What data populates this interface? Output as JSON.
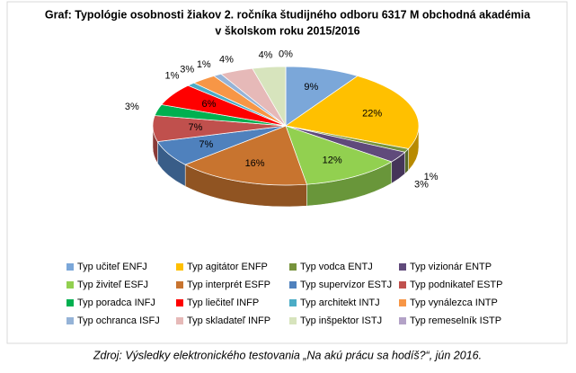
{
  "chart_data": {
    "type": "pie3d",
    "title": [
      "Graf: Typológie osobnosti žiakov 2. ročníka študijného odboru 6317 M obchodná akadémia",
      "v školskom roku 2015/2016"
    ],
    "categories": [
      "Typ učiteľ ENFJ",
      "Typ agitátor ENFP",
      "Typ vodca ENTJ",
      "Typ vizionár ENTP",
      "Typ živiteľ ESFJ",
      "Typ interprét ESFP",
      "Typ supervízor ESTJ",
      "Typ podnikateľ ESTP",
      "Typ poradca INFJ",
      "Typ liečiteľ INFP",
      "Typ architekt INTJ",
      "Typ vynálezca INTP",
      "Typ ochranca ISFJ",
      "Typ skladateľ INFP",
      "Typ inšpektor ISTJ",
      "Typ remeselník ISTP"
    ],
    "values": [
      9,
      22,
      1,
      3,
      12,
      16,
      7,
      7,
      3,
      6,
      1,
      3,
      1,
      4,
      4,
      0
    ],
    "value_labels": [
      "9%",
      "22%",
      "1%",
      "3%",
      "12%",
      "16%",
      "7%",
      "7%",
      "3%",
      "6%",
      "1%",
      "3%",
      "1%",
      "4%",
      "4%",
      "0%"
    ],
    "colors": [
      "#7ba7d9",
      "#ffc000",
      "#77933c",
      "#604a7b",
      "#92d050",
      "#c8742f",
      "#4f81bd",
      "#c0504d",
      "#00b050",
      "#ff0000",
      "#4bacc6",
      "#f79646",
      "#95b3d7",
      "#e6b9b8",
      "#d7e4bd",
      "#b3a2c7"
    ],
    "source": "Zdroj: Výsledky elektronického testovania „Na akú prácu sa hodíš?“, jún 2016."
  }
}
